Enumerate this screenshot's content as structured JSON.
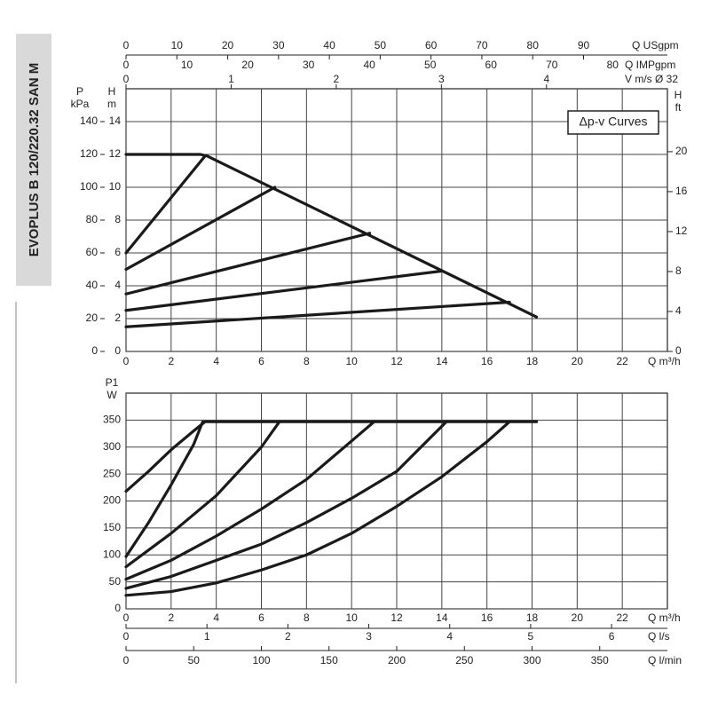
{
  "side_title": "EVOPLUS B 120/220.32 SAN M",
  "chart_data": [
    {
      "type": "line",
      "annotation": "Δp-v Curves",
      "xlabel": [
        "Q m³/h"
      ],
      "xlim": [
        0,
        24
      ],
      "xticks": [
        0,
        2,
        4,
        6,
        8,
        10,
        12,
        14,
        16,
        18,
        20,
        22
      ],
      "ylabel": [
        "H",
        "m"
      ],
      "ylim": [
        0,
        16
      ],
      "yticks": [
        0,
        2,
        4,
        6,
        8,
        10,
        12,
        14
      ],
      "grid": true,
      "extra_axes": [
        {
          "label": [
            "Q USgpm"
          ],
          "lim": [
            0,
            106.5
          ],
          "ticks": [
            0,
            10,
            20,
            30,
            40,
            50,
            60,
            70,
            80,
            90
          ]
        },
        {
          "label": [
            "Q IMPgpm"
          ],
          "lim": [
            0,
            89
          ],
          "ticks": [
            0,
            10,
            20,
            30,
            40,
            50,
            60,
            70,
            80
          ]
        },
        {
          "label": [
            "V m/s Ø 32"
          ],
          "lim": [
            0,
            5.15
          ],
          "ticks": [
            0,
            1,
            2,
            3,
            4
          ]
        },
        {
          "label": [
            "P",
            "kPa"
          ],
          "lim": [
            0,
            160
          ],
          "ticks": [
            0,
            20,
            40,
            60,
            80,
            100,
            120,
            140
          ]
        },
        {
          "label": [
            "H",
            "ft"
          ],
          "lim": [
            0,
            26.3
          ],
          "ticks": [
            0,
            4,
            8,
            12,
            16,
            20
          ]
        }
      ],
      "series": [
        {
          "color": "#1a1a1a",
          "x": [
            0,
            3.3,
            3.6,
            18.2
          ],
          "values": [
            12,
            12,
            11.9,
            2.1
          ]
        },
        {
          "color": "#1a1a1a",
          "x": [
            0,
            3.5
          ],
          "values": [
            6,
            11.9
          ]
        },
        {
          "color": "#1a1a1a",
          "x": [
            0,
            6.6
          ],
          "values": [
            5,
            10
          ]
        },
        {
          "color": "#1a1a1a",
          "x": [
            0,
            10.8
          ],
          "values": [
            3.5,
            7.2
          ]
        },
        {
          "color": "#1a1a1a",
          "x": [
            0,
            14
          ],
          "values": [
            2.5,
            4.9
          ]
        },
        {
          "color": "#1a1a1a",
          "x": [
            0,
            17
          ],
          "values": [
            1.5,
            3
          ]
        }
      ]
    },
    {
      "type": "line",
      "xlabel": [
        "Q m³/h"
      ],
      "xlim": [
        0,
        24
      ],
      "xticks": [
        0,
        2,
        4,
        6,
        8,
        10,
        12,
        14,
        16,
        18,
        20,
        22
      ],
      "ylabel": [
        "P1",
        "W"
      ],
      "ylim": [
        0,
        400
      ],
      "yticks": [
        0,
        50,
        100,
        150,
        200,
        250,
        300,
        350
      ],
      "grid": true,
      "extra_axes": [
        {
          "label": [
            "Q l/s"
          ],
          "lim": [
            0,
            6.69
          ],
          "ticks": [
            0,
            1,
            2,
            3,
            4,
            5,
            6
          ]
        },
        {
          "label": [
            "Q l/min"
          ],
          "lim": [
            0,
            400
          ],
          "ticks": [
            0,
            50,
            100,
            150,
            200,
            250,
            300,
            350
          ]
        }
      ],
      "series": [
        {
          "color": "#1a1a1a",
          "x": [
            0,
            1,
            2,
            3,
            3.5,
            18.2
          ],
          "values": [
            218,
            255,
            295,
            330,
            347,
            347
          ]
        },
        {
          "color": "#1a1a1a",
          "x": [
            0,
            1,
            2,
            3,
            3.4
          ],
          "values": [
            97,
            160,
            230,
            305,
            347
          ]
        },
        {
          "color": "#1a1a1a",
          "x": [
            0,
            2,
            4,
            6,
            6.8
          ],
          "values": [
            78,
            140,
            210,
            300,
            347
          ]
        },
        {
          "color": "#1a1a1a",
          "x": [
            0,
            2,
            4,
            6,
            8,
            11
          ],
          "values": [
            55,
            90,
            135,
            185,
            240,
            347
          ]
        },
        {
          "color": "#1a1a1a",
          "x": [
            0,
            2,
            4,
            6,
            8,
            10,
            12,
            14.2
          ],
          "values": [
            38,
            60,
            90,
            120,
            160,
            205,
            255,
            347
          ]
        },
        {
          "color": "#1a1a1a",
          "x": [
            0,
            2,
            4,
            6,
            8,
            10,
            12,
            14,
            16,
            17
          ],
          "values": [
            25,
            32,
            48,
            72,
            100,
            140,
            190,
            245,
            310,
            347
          ]
        }
      ]
    }
  ]
}
